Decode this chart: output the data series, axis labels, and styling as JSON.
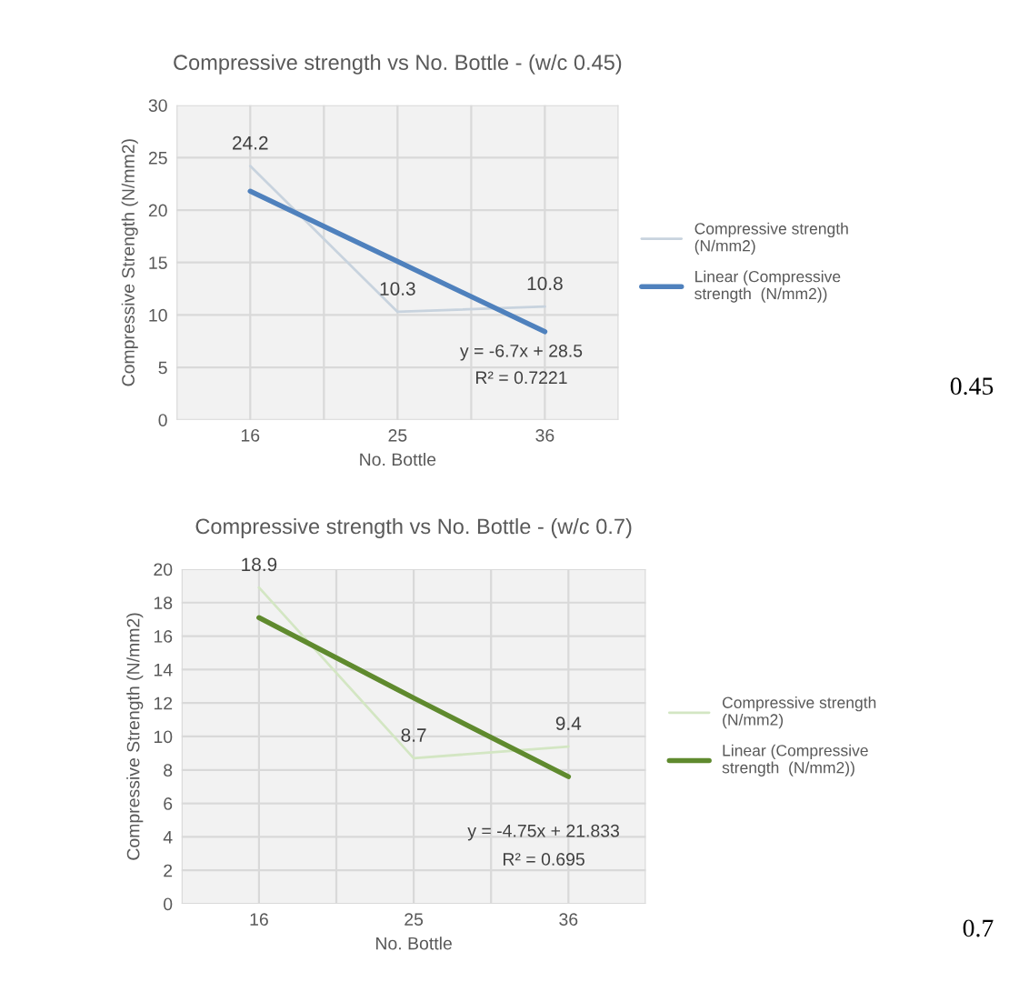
{
  "chart_data": [
    {
      "type": "line",
      "title": "Compressive strength vs No. Bottle - (w/c 0.45)",
      "xlabel": "No. Bottle",
      "ylabel": "Compressive Strength (N/mm2)",
      "categories": [
        "16",
        "25",
        "36"
      ],
      "series": [
        {
          "name": "Compressive strength (N/mm2)",
          "color": "#c8d3de",
          "values": [
            24.2,
            10.3,
            10.8
          ],
          "value_labels": [
            "24.2",
            "10.3",
            "10.8"
          ]
        },
        {
          "name": "Linear (Compressive strength  (N/mm2))",
          "color": "#4f81bd",
          "values": [
            21.8,
            15.1,
            8.4
          ]
        }
      ],
      "ylim": [
        0,
        30
      ],
      "yticks": [
        0,
        5,
        10,
        15,
        20,
        25,
        30
      ],
      "grid": true,
      "legend": "right",
      "marker": "none",
      "line_style": "solid",
      "annotations": [
        "y = -6.7x + 28.5",
        "R² = 0.7221",
        "0.45"
      ]
    },
    {
      "type": "line",
      "title": "Compressive strength vs No. Bottle - (w/c 0.7)",
      "xlabel": "No. Bottle",
      "ylabel": "Compressive Strength (N/mm2)",
      "categories": [
        "16",
        "25",
        "36"
      ],
      "series": [
        {
          "name": "Compressive strength (N/mm2)",
          "color": "#d3e6c3",
          "values": [
            18.9,
            8.7,
            9.4
          ],
          "value_labels": [
            "18.9",
            "8.7",
            "9.4"
          ]
        },
        {
          "name": "Linear (Compressive strength  (N/mm2))",
          "color": "#5f8a2e",
          "values": [
            17.1,
            12.3,
            7.6
          ]
        }
      ],
      "ylim": [
        0,
        20
      ],
      "yticks": [
        0,
        2,
        4,
        6,
        8,
        10,
        12,
        14,
        16,
        18,
        20
      ],
      "grid": true,
      "legend": "right",
      "marker": "none",
      "line_style": "solid",
      "annotations": [
        "y = -4.75x + 21.833",
        "R² = 0.695",
        "0.7"
      ]
    }
  ]
}
